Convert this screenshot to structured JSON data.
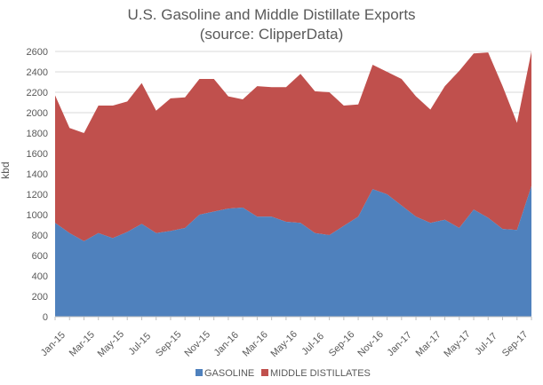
{
  "chart_data": {
    "type": "area",
    "stacked": true,
    "title": "U.S. Gasoline and Middle Distillate Exports",
    "subtitle": "(source: ClipperData)",
    "xlabel": "",
    "ylabel": "kbd",
    "ylim": [
      0,
      2600
    ],
    "y_ticks": [
      0,
      200,
      400,
      600,
      800,
      1000,
      1200,
      1400,
      1600,
      1800,
      2000,
      2200,
      2400,
      2600
    ],
    "grid": true,
    "legend_position": "bottom",
    "x": [
      "Jan-15",
      "Feb-15",
      "Mar-15",
      "Apr-15",
      "May-15",
      "Jun-15",
      "Jul-15",
      "Aug-15",
      "Sep-15",
      "Oct-15",
      "Nov-15",
      "Dec-15",
      "Jan-16",
      "Feb-16",
      "Mar-16",
      "Apr-16",
      "May-16",
      "Jun-16",
      "Jul-16",
      "Aug-16",
      "Sep-16",
      "Oct-16",
      "Nov-16",
      "Dec-16",
      "Jan-17",
      "Feb-17",
      "Mar-17",
      "Apr-17",
      "May-17",
      "Jun-17",
      "Jul-17",
      "Aug-17",
      "Sep-17",
      "Oct-17"
    ],
    "x_tick_labels": [
      "Jan-15",
      "Mar-15",
      "May-15",
      "Jul-15",
      "Sep-15",
      "Nov-15",
      "Jan-16",
      "Mar-16",
      "May-16",
      "Jul-16",
      "Sep-16",
      "Nov-16",
      "Jan-17",
      "Mar-17",
      "May-17",
      "Jul-17",
      "Sep-17"
    ],
    "series": [
      {
        "name": "GASOLINE",
        "color": "#4f81bd",
        "values": [
          920,
          820,
          740,
          820,
          770,
          830,
          910,
          820,
          840,
          870,
          1000,
          1030,
          1060,
          1070,
          980,
          980,
          930,
          920,
          820,
          800,
          890,
          980,
          1250,
          1200,
          1090,
          980,
          920,
          950,
          870,
          1050,
          970,
          860,
          850,
          1280
        ]
      },
      {
        "name": "MIDDLE DISTILLATES",
        "color": "#c0504d",
        "values": [
          1250,
          1030,
          1060,
          1250,
          1300,
          1280,
          1380,
          1200,
          1300,
          1280,
          1330,
          1300,
          1100,
          1060,
          1280,
          1270,
          1320,
          1460,
          1390,
          1400,
          1180,
          1100,
          1220,
          1200,
          1240,
          1180,
          1110,
          1310,
          1540,
          1530,
          1620,
          1400,
          1050,
          1320
        ]
      }
    ]
  }
}
